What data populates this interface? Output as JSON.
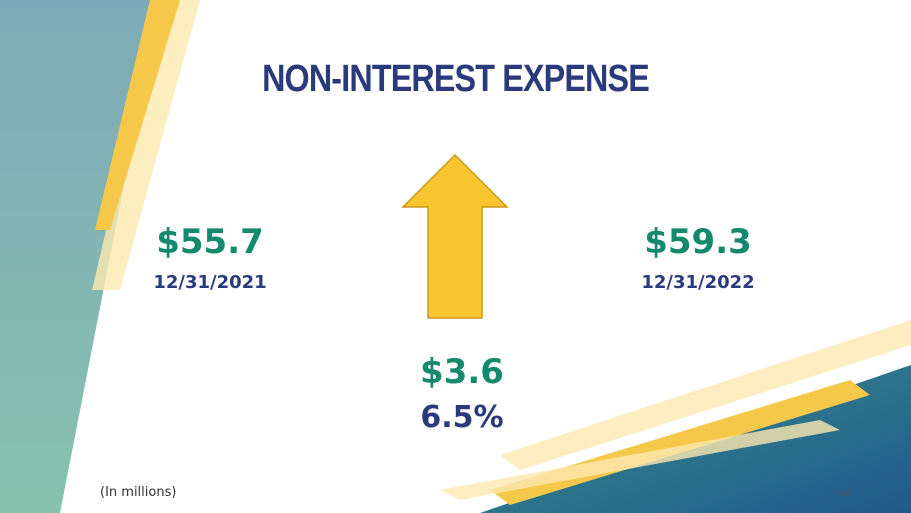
{
  "title": "NON-INTEREST EXPENSE",
  "left": {
    "value": "$55.7",
    "date": "12/31/2021"
  },
  "right": {
    "value": "$59.3",
    "date": "12/31/2022"
  },
  "change": {
    "value": "$3.6",
    "percent": "6.5%"
  },
  "note": "(In millions)",
  "page_number": "40"
}
